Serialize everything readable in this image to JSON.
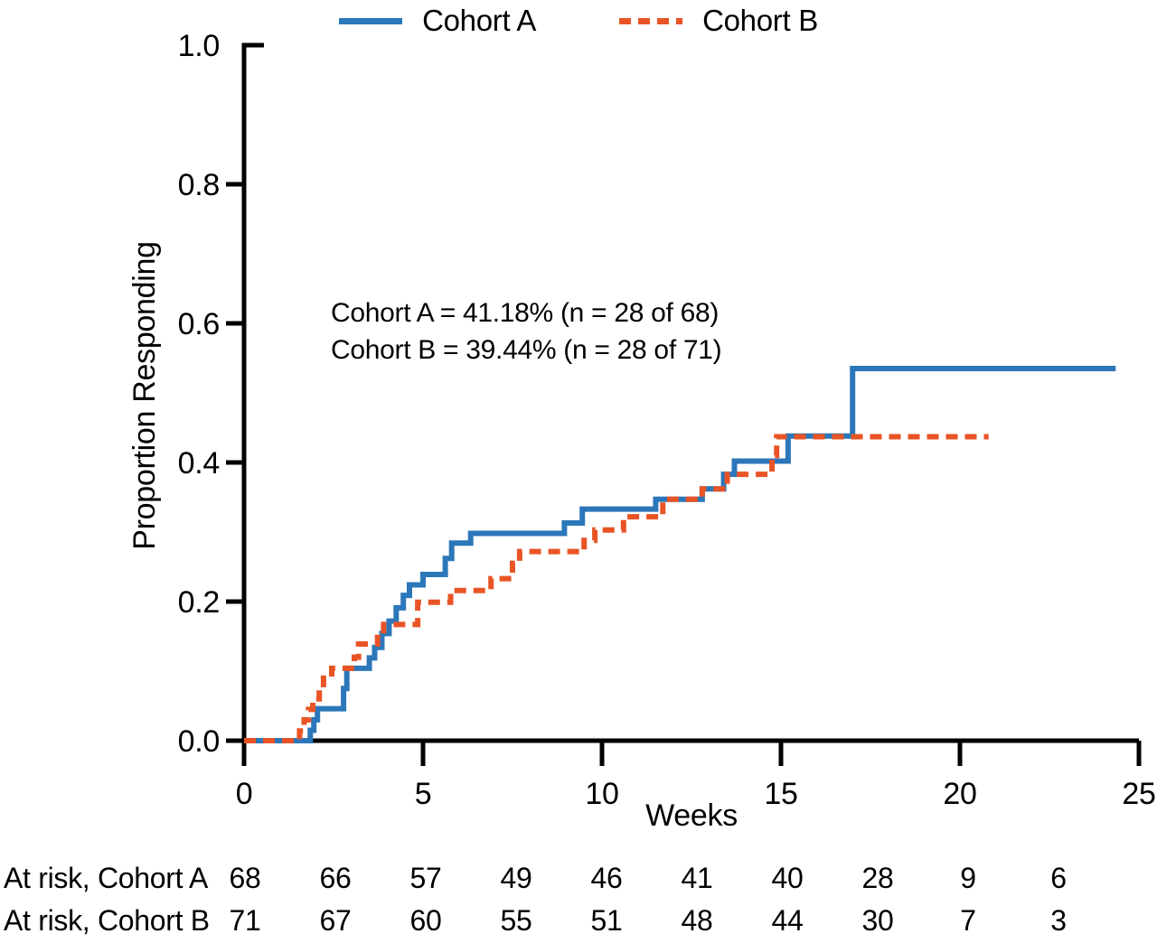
{
  "legend": {
    "items": [
      {
        "label": "Cohort A",
        "color": "#2B77B9",
        "style": "solid"
      },
      {
        "label": "Cohort B",
        "color": "#E95426",
        "style": "dashed"
      }
    ]
  },
  "annotation": {
    "line1": "Cohort A = 41.18% (n = 28 of 68)",
    "line2": "Cohort B = 39.44% (n = 28 of 71)"
  },
  "chart_data": {
    "type": "line",
    "subtype": "kaplan-meier-step",
    "title": "",
    "xlabel": "Weeks",
    "ylabel": "Proportion Responding",
    "xlim": [
      0,
      25
    ],
    "ylim": [
      0,
      1
    ],
    "x_ticks": [
      0,
      5,
      10,
      15,
      20,
      25
    ],
    "y_ticks": [
      "0.0",
      "0.2",
      "0.4",
      "0.6",
      "0.8",
      "1.0"
    ],
    "grid": false,
    "legend_position": "top-center",
    "series": [
      {
        "name": "Cohort A",
        "color": "#2B77B9",
        "line_style": "solid",
        "start": [
          0,
          0
        ],
        "end_x": 24.35,
        "steps": [
          [
            1.85,
            0.015
          ],
          [
            1.95,
            0.03
          ],
          [
            2.05,
            0.046
          ],
          [
            2.78,
            0.075
          ],
          [
            2.87,
            0.104
          ],
          [
            3.5,
            0.119
          ],
          [
            3.65,
            0.134
          ],
          [
            3.85,
            0.154
          ],
          [
            4.05,
            0.172
          ],
          [
            4.25,
            0.191
          ],
          [
            4.45,
            0.209
          ],
          [
            4.62,
            0.224
          ],
          [
            5.0,
            0.239
          ],
          [
            5.62,
            0.262
          ],
          [
            5.8,
            0.284
          ],
          [
            6.33,
            0.298
          ],
          [
            8.95,
            0.313
          ],
          [
            9.45,
            0.333
          ],
          [
            11.5,
            0.347
          ],
          [
            12.8,
            0.362
          ],
          [
            13.4,
            0.383
          ],
          [
            13.7,
            0.402
          ],
          [
            15.2,
            0.438
          ],
          [
            17.0,
            0.535
          ]
        ]
      },
      {
        "name": "Cohort B",
        "color": "#E95426",
        "line_style": "dashed",
        "start": [
          0,
          0
        ],
        "end_x": 20.8,
        "steps": [
          [
            1.55,
            0.014
          ],
          [
            1.68,
            0.03
          ],
          [
            1.8,
            0.045
          ],
          [
            1.92,
            0.06
          ],
          [
            2.1,
            0.075
          ],
          [
            2.22,
            0.09
          ],
          [
            2.45,
            0.104
          ],
          [
            3.08,
            0.12
          ],
          [
            3.2,
            0.139
          ],
          [
            3.73,
            0.153
          ],
          [
            3.9,
            0.167
          ],
          [
            4.85,
            0.199
          ],
          [
            5.77,
            0.216
          ],
          [
            6.9,
            0.233
          ],
          [
            7.5,
            0.255
          ],
          [
            7.7,
            0.272
          ],
          [
            9.5,
            0.288
          ],
          [
            9.8,
            0.303
          ],
          [
            10.6,
            0.322
          ],
          [
            11.7,
            0.347
          ],
          [
            12.8,
            0.362
          ],
          [
            13.5,
            0.383
          ],
          [
            14.75,
            0.41
          ],
          [
            14.88,
            0.437
          ]
        ]
      }
    ]
  },
  "at_risk": {
    "rows": [
      {
        "label": "At risk, Cohort A",
        "values": [
          68,
          66,
          57,
          49,
          46,
          41,
          40,
          28,
          9,
          6
        ]
      },
      {
        "label": "At risk, Cohort B",
        "values": [
          71,
          67,
          60,
          55,
          51,
          48,
          44,
          30,
          7,
          3
        ]
      }
    ]
  }
}
